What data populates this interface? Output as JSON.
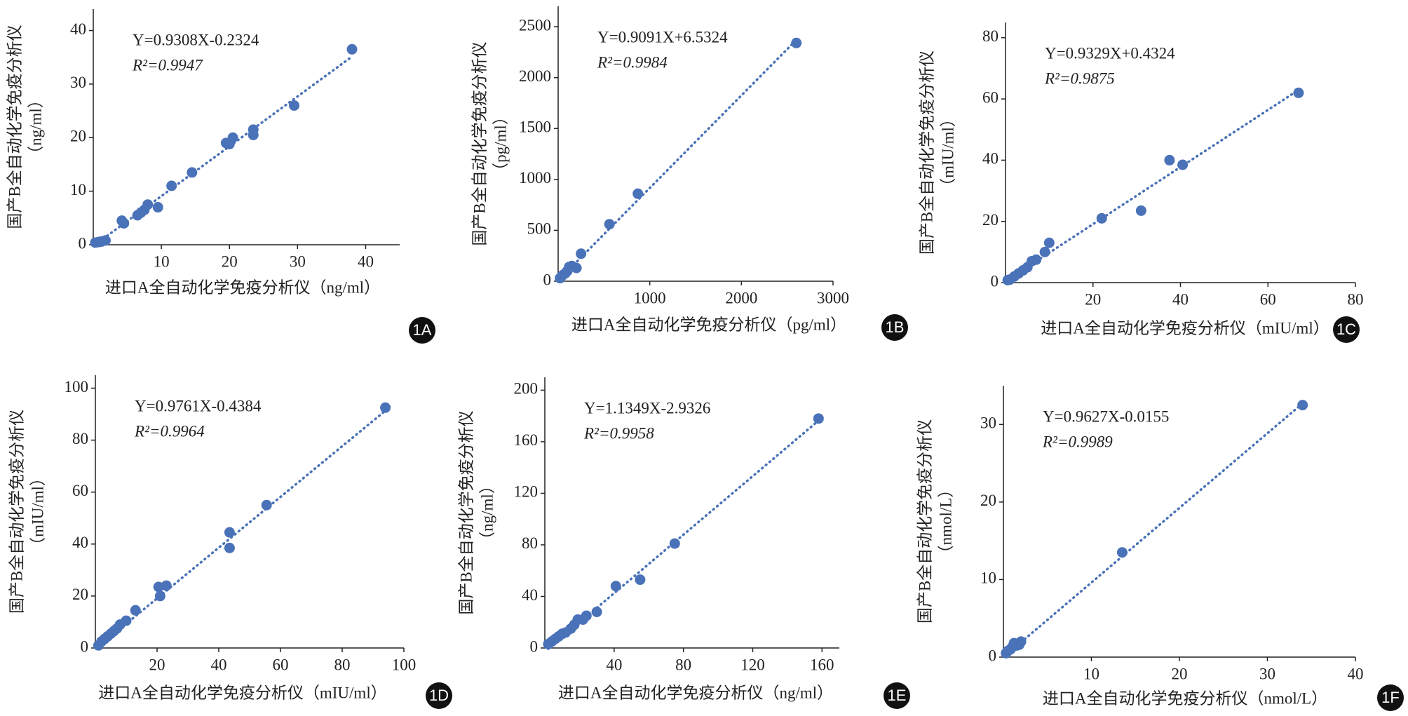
{
  "chart_data": [
    {
      "type": "scatter",
      "panel_label": "1A",
      "equation": "Y=0.9308X-0.2324",
      "r2": "R²=0.9947",
      "trendline": {
        "slope": 0.9308,
        "intercept": -0.2324
      },
      "xlabel": "进口A全自动化学免疫分析仪（ng/ml）",
      "ylabel": [
        "国产B全自动化学免疫分析仪",
        "（ng/ml）"
      ],
      "color": "#4a72b8",
      "x": [
        0.3,
        0.8,
        1.2,
        1.8,
        4.2,
        4.5,
        6.5,
        7,
        7.5,
        8,
        9.5,
        11.5,
        14.5,
        19.5,
        20,
        20.5,
        23.5,
        23.5,
        29.5,
        38
      ],
      "values": [
        0.4,
        0.5,
        0.6,
        0.8,
        4.5,
        4,
        5.5,
        6,
        6.5,
        7.5,
        7,
        11,
        13.5,
        19,
        18.8,
        20,
        21.5,
        20.5,
        26,
        36.5
      ],
      "xlim": [
        0,
        45
      ],
      "ylim": [
        0,
        44
      ],
      "xticks": [
        10,
        20,
        30,
        40
      ],
      "yticks": [
        0,
        10,
        20,
        30,
        40
      ]
    },
    {
      "type": "scatter",
      "panel_label": "1B",
      "equation": "Y=0.9091X+6.5324",
      "r2": "R²=0.9984",
      "trendline": {
        "slope": 0.9091,
        "intercept": 6.5324
      },
      "xlabel": "进口A全自动化学免疫分析仪（pg/ml）",
      "ylabel": [
        "国产B全自动化学免疫分析仪",
        "（pg/ml）"
      ],
      "color": "#4a72b8",
      "x": [
        20,
        50,
        80,
        100,
        120,
        150,
        200,
        250,
        560,
        870,
        2600
      ],
      "values": [
        30,
        60,
        80,
        100,
        140,
        150,
        130,
        270,
        560,
        860,
        2340
      ],
      "xlim": [
        0,
        3000
      ],
      "ylim": [
        0,
        2700
      ],
      "xticks": [
        1000,
        2000,
        3000
      ],
      "yticks": [
        0,
        500,
        1000,
        1500,
        2000,
        2500
      ]
    },
    {
      "type": "scatter",
      "panel_label": "1C",
      "equation": "Y=0.9329X+0.4324",
      "r2": "R²=0.9875",
      "trendline": {
        "slope": 0.9329,
        "intercept": 0.4324
      },
      "xlabel": "进口A全自动化学免疫分析仪（mIU/ml）",
      "ylabel": [
        "国产B全自动化学免疫分析仪",
        "（mIU/ml）"
      ],
      "color": "#4a72b8",
      "x": [
        0.5,
        1,
        2,
        3,
        4,
        5,
        6,
        7,
        9,
        10,
        22,
        31,
        37.5,
        40.5,
        67
      ],
      "values": [
        0.8,
        1,
        2,
        3,
        4,
        5,
        7,
        7.5,
        10,
        13,
        21,
        23.5,
        40,
        38.5,
        62
      ],
      "xlim": [
        0,
        80
      ],
      "ylim": [
        0,
        85
      ],
      "xticks": [
        20,
        40,
        60,
        80
      ],
      "yticks": [
        0,
        20,
        40,
        60,
        80
      ]
    },
    {
      "type": "scatter",
      "panel_label": "1D",
      "equation": "Y=0.9761X-0.4384",
      "r2": "R²=0.9964",
      "trendline": {
        "slope": 0.9761,
        "intercept": -0.4384
      },
      "xlabel": "进口A全自动化学免疫分析仪（mIU/ml）",
      "ylabel": [
        "国产B全自动化学免疫分析仪",
        "（mIU/ml）"
      ],
      "color": "#4a72b8",
      "x": [
        1,
        2,
        3,
        4,
        5,
        6,
        7,
        8,
        10,
        13,
        20.5,
        21,
        23,
        43.5,
        43.5,
        55.5,
        94
      ],
      "values": [
        1,
        2.5,
        3.5,
        4.5,
        5.5,
        6.5,
        7.5,
        9,
        10.5,
        14.5,
        23.5,
        20,
        24,
        44.5,
        38.5,
        55,
        92.5
      ],
      "xlim": [
        0,
        100
      ],
      "ylim": [
        0,
        105
      ],
      "xticks": [
        20,
        40,
        60,
        80,
        100
      ],
      "yticks": [
        0,
        20,
        40,
        60,
        80,
        100
      ]
    },
    {
      "type": "scatter",
      "panel_label": "1E",
      "equation": "Y=1.1349X-2.9326",
      "r2": "R²=0.9958",
      "trendline": {
        "slope": 1.1349,
        "intercept": -2.9326
      },
      "xlabel": "进口A全自动化学免疫分析仪（ng/ml）",
      "ylabel": [
        "国产B全自动化学免疫分析仪",
        "（ng/ml）"
      ],
      "color": "#4a72b8",
      "x": [
        2,
        4,
        6,
        8,
        10,
        12,
        15,
        17,
        19,
        22,
        24,
        30,
        41,
        55,
        75,
        158
      ],
      "values": [
        3,
        5,
        7,
        9,
        11,
        12,
        15,
        18,
        22,
        22,
        25,
        28,
        48,
        53,
        81,
        178
      ],
      "xlim": [
        0,
        170
      ],
      "ylim": [
        0,
        210
      ],
      "xticks": [
        40,
        80,
        120,
        160
      ],
      "yticks": [
        0,
        40,
        80,
        120,
        160,
        200
      ]
    },
    {
      "type": "scatter",
      "panel_label": "1F",
      "equation": "Y=0.9627X-0.0155",
      "r2": "R²=0.9989",
      "trendline": {
        "slope": 0.9627,
        "intercept": -0.0155
      },
      "xlabel": "进口A全自动化学免疫分析仪（nmol/L）",
      "ylabel": [
        "国产B全自动化学免疫分析仪",
        "（nmol/L）"
      ],
      "color": "#4a72b8",
      "x": [
        0.3,
        0.5,
        0.8,
        1,
        1.2,
        1.5,
        1.8,
        2,
        13.5,
        34
      ],
      "values": [
        0.5,
        0.8,
        1,
        1.3,
        1.8,
        1.5,
        1.6,
        2,
        13.5,
        32.5
      ],
      "xlim": [
        0,
        40
      ],
      "ylim": [
        0,
        35
      ],
      "xticks": [
        10,
        20,
        30,
        40
      ],
      "yticks": [
        0,
        10,
        20,
        30
      ]
    }
  ]
}
